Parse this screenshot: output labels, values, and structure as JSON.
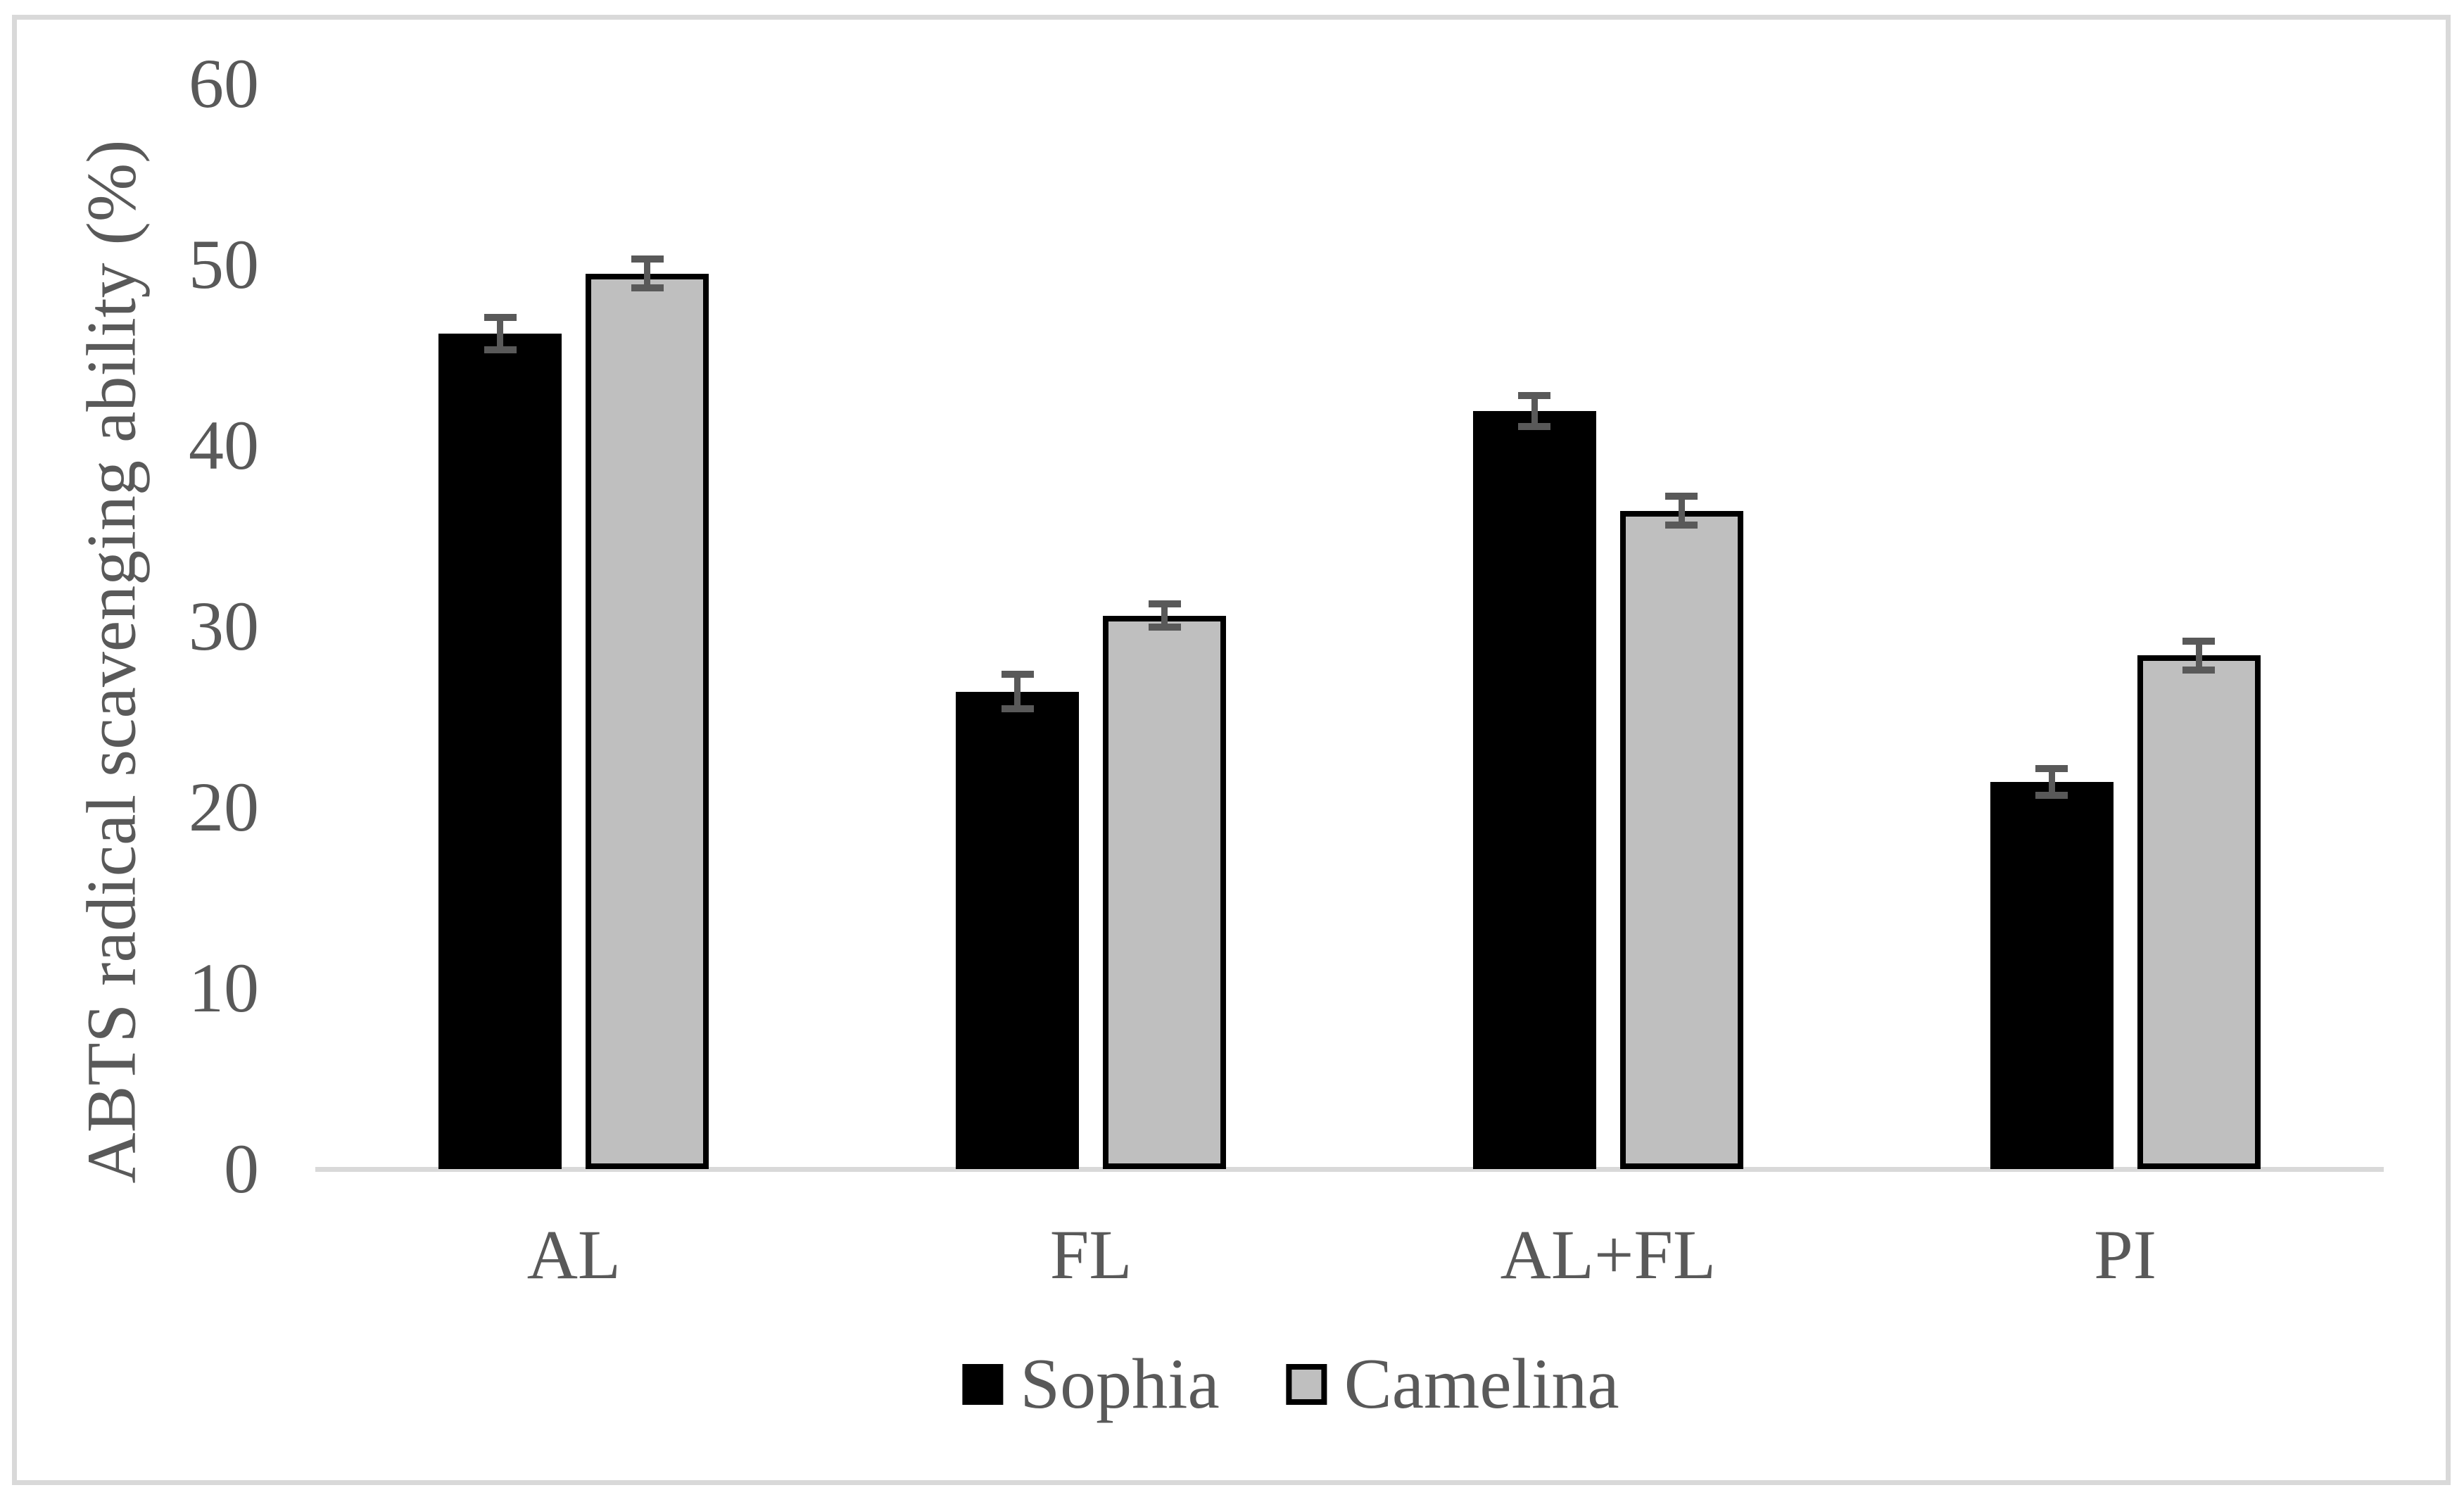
{
  "figure": {
    "background_color": "#ffffff",
    "border_color": "#d9d9d9",
    "text_color": "#595959",
    "axis_line_color": "#d9d9d9",
    "error_bar_color": "#595959"
  },
  "chart_data": {
    "type": "bar",
    "title": "",
    "xlabel": "",
    "ylabel": "ABTS radical scavenging ability (%)",
    "categories": [
      "AL",
      "FL",
      "AL+FL",
      "PI"
    ],
    "series": [
      {
        "name": "Sophia",
        "color": "#000000",
        "border_color": "#000000",
        "values": [
          46.2,
          26.4,
          41.9,
          21.4
        ],
        "errors": [
          0.9,
          0.95,
          0.85,
          0.75
        ]
      },
      {
        "name": "Camelina",
        "color": "#bfbfbf",
        "border_color": "#000000",
        "values": [
          49.5,
          30.6,
          36.4,
          28.4
        ],
        "errors": [
          0.8,
          0.65,
          0.8,
          0.8
        ]
      }
    ],
    "ylim": [
      0,
      60
    ],
    "ytick_step": 10,
    "yticks": [
      60,
      50,
      40,
      30,
      20,
      10,
      0
    ],
    "grid": false,
    "legend_position": "bottom",
    "error_bars": true
  }
}
